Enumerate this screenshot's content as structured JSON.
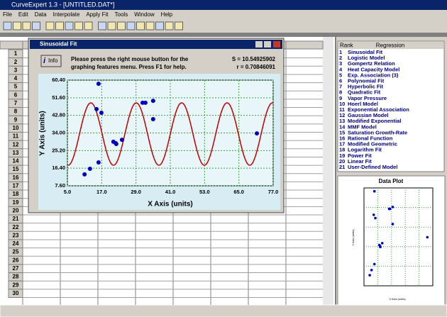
{
  "window": {
    "title": "CurveExpert 1.3 - [UNTITLED.DAT*]"
  },
  "menu": [
    "File",
    "Edit",
    "Data",
    "Interpolate",
    "Apply Fit",
    "Tools",
    "Window",
    "Help"
  ],
  "sheet": {
    "rows": [
      "1",
      "2",
      "3",
      "4",
      "5",
      "6",
      "7",
      "8",
      "9",
      "10",
      "11",
      "12",
      "13",
      "14",
      "15",
      "16",
      "17",
      "18",
      "19",
      "20",
      "21",
      "22",
      "23",
      "24",
      "25",
      "26",
      "27",
      "28",
      "29",
      "30"
    ]
  },
  "fit_window": {
    "title": "Sinusoidal Fit",
    "info_button": "Info",
    "message": [
      "Please press the right mouse button for the",
      "graphing features menu.  Press F1 for help."
    ],
    "stats": [
      "S = 10.54925902",
      "r = 0.70846091"
    ]
  },
  "chart_data": {
    "type": "scatter",
    "x_label": "X Axis (units)",
    "y_label": "Y Axis (units)",
    "x": [
      11.0,
      12.9,
      15.2,
      15.9,
      15.9,
      16.9,
      21.1,
      21.9,
      22.1,
      24.1,
      31.3,
      32.3,
      35.0,
      35.0,
      71.3
    ],
    "values": [
      13.3,
      16.1,
      45.9,
      58.6,
      19.3,
      44.1,
      29.6,
      28.9,
      28.5,
      30.6,
      49.1,
      49.1,
      50.1,
      40.9,
      33.8
    ],
    "color": "#0000c0",
    "fit_color": "#c00000",
    "xlim": [
      5,
      77
    ],
    "ylim": [
      7.6,
      60.4
    ],
    "xticks": [
      {
        "value": 5,
        "label": "5.0"
      },
      {
        "value": 17,
        "label": "17.0"
      },
      {
        "value": 29,
        "label": "29.0"
      },
      {
        "value": 41,
        "label": "41.0"
      },
      {
        "value": 53,
        "label": "53.0"
      },
      {
        "value": 65,
        "label": "65.0"
      },
      {
        "value": 77,
        "label": "77.0"
      }
    ],
    "yticks": [
      {
        "value": 7.6,
        "label": "7.60"
      },
      {
        "value": 16.4,
        "label": "16.40"
      },
      {
        "value": 25.2,
        "label": "25.20"
      },
      {
        "value": 34,
        "label": "34.00"
      },
      {
        "value": 42.8,
        "label": "42.80"
      },
      {
        "value": 51.6,
        "label": "51.60"
      },
      {
        "value": 60.4,
        "label": "60.40"
      }
    ],
    "grid": true
  },
  "rank_table": {
    "headers": [
      "Rank",
      "Regression"
    ],
    "rows": [
      [
        "1",
        "Sinusoidal Fit"
      ],
      [
        "2",
        "Logistic Model"
      ],
      [
        "3",
        "Gompertz Relation"
      ],
      [
        "4",
        "Heat Capacity Model"
      ],
      [
        "5",
        "Exp. Association (3)"
      ],
      [
        "6",
        "Polynomial Fit"
      ],
      [
        "7",
        "Hyperbolic Fit"
      ],
      [
        "8",
        "Quadratic Fit"
      ],
      [
        "9",
        "Vapor Pressure"
      ],
      [
        "10",
        "Hoerl Model"
      ],
      [
        "11",
        "Exponential Association"
      ],
      [
        "12",
        "Gaussian Model"
      ],
      [
        "13",
        "Modified Exponential"
      ],
      [
        "14",
        "MMF Model"
      ],
      [
        "15",
        "Saturation Growth-Rate"
      ],
      [
        "16",
        "Rational Function"
      ],
      [
        "17",
        "Modified Geometric"
      ],
      [
        "18",
        "Logarithm Fit"
      ],
      [
        "19",
        "Power Fit"
      ],
      [
        "20",
        "Linear Fit"
      ],
      [
        "21",
        "User-Defined Model"
      ]
    ]
  },
  "data_plot": {
    "title": "Data Plot",
    "x_label": "X Axis (units)",
    "y_label": "Y Axis (units)"
  }
}
